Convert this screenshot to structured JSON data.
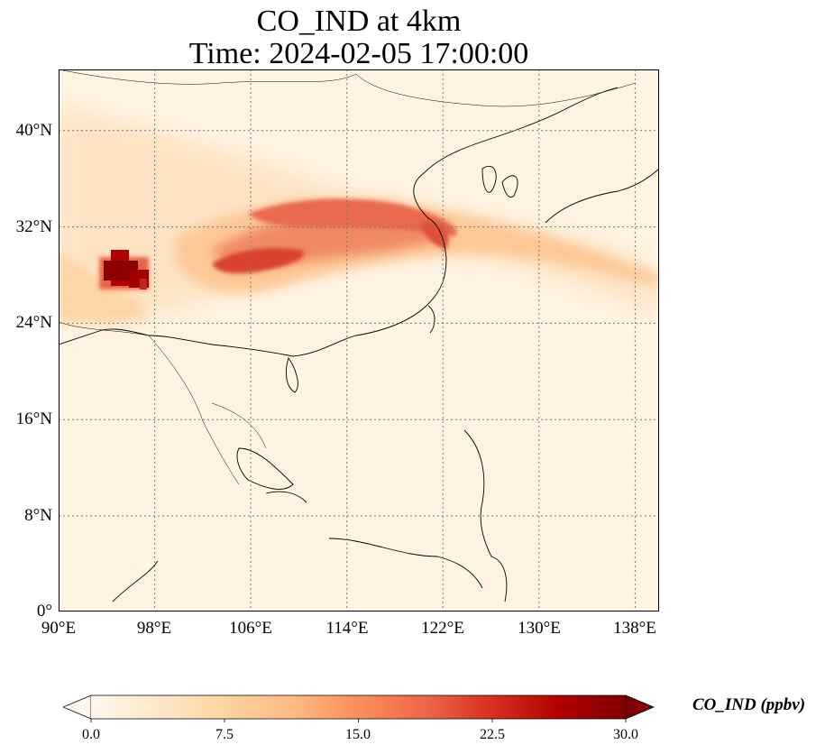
{
  "title": {
    "line1": "CO_IND at 4km",
    "line2": "Time: 2024-02-05 17:00:00"
  },
  "map": {
    "projection": "PlateCarree",
    "lon_range": [
      90,
      140
    ],
    "lat_range": [
      0,
      45
    ],
    "gridlines": "dotted",
    "lat_ticks": [
      "40°N",
      "32°N",
      "24°N",
      "16°N",
      "8°N",
      "0°"
    ],
    "lon_ticks": [
      "90°E",
      "98°E",
      "106°E",
      "114°E",
      "122°E",
      "130°E",
      "138°E"
    ]
  },
  "colorbar": {
    "label": "CO_IND (ppbv)",
    "cmap": "OrRd",
    "range": [
      0.0,
      30.0
    ],
    "extend": "both",
    "ticks": [
      "0.0",
      "7.5",
      "15.0",
      "22.5",
      "30.0"
    ],
    "colors": [
      "#fff7ec",
      "#fee8c8",
      "#fdd49e",
      "#fdbb84",
      "#fc8d59",
      "#ef6548",
      "#d7301f",
      "#b30000",
      "#7f0000"
    ]
  }
}
